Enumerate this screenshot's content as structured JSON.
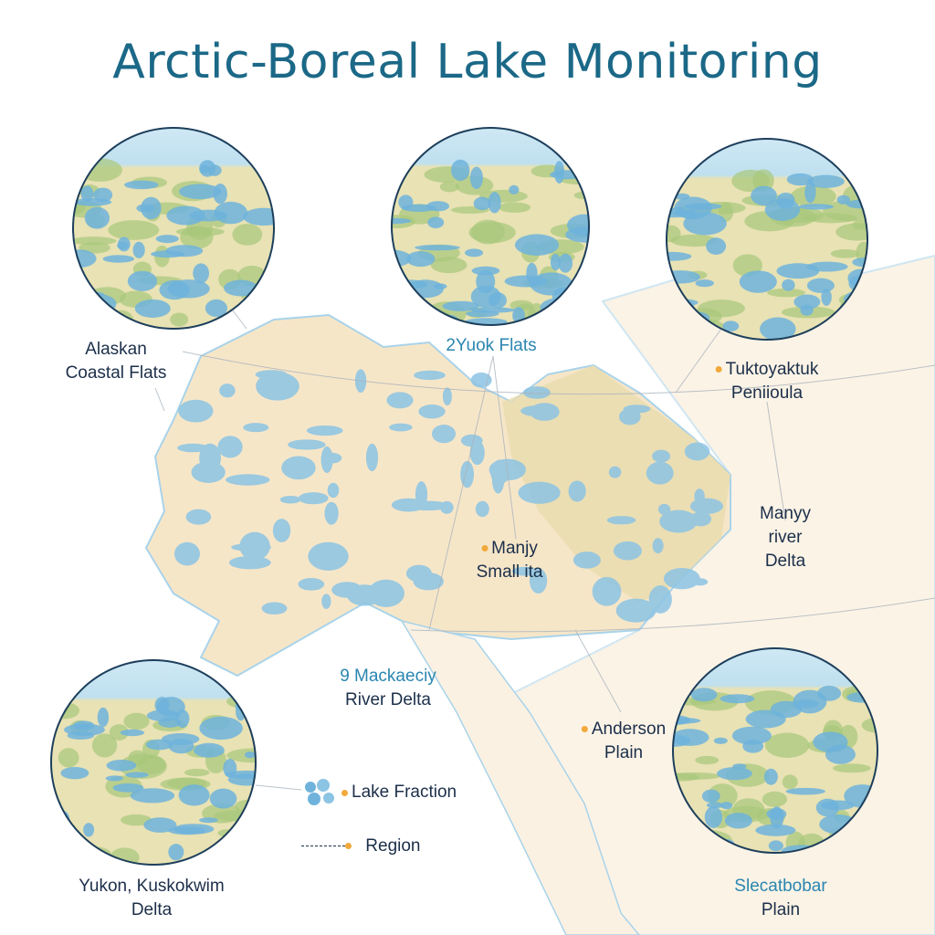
{
  "title": "Arctic-Boreal Lake Monitoring",
  "colors": {
    "title": "#1b6887",
    "land": "#f6e6c8",
    "lake": "#7fbde0",
    "marker": "#f2a93b",
    "circle_border": "#1d3f5c"
  },
  "regions": [
    {
      "line1": "Alaskan",
      "line2": "Coastal Flats",
      "marker": false
    },
    {
      "line1": "2Yuok Flats",
      "line2": "",
      "marker": false
    },
    {
      "line1": "Tuktoyaktuk",
      "line2": "Peniioula",
      "marker": true
    },
    {
      "line1": "Manyy",
      "line2": "river",
      "line3": "Delta",
      "marker": false
    },
    {
      "line1": "Manjy",
      "line2": "Small ita",
      "marker": true
    },
    {
      "line1": "9 Mackaeciy",
      "line2": "River Delta",
      "marker": false
    },
    {
      "line1": "Anderson",
      "line2": "Plain",
      "marker": true
    },
    {
      "line1": "Slecatbobar",
      "line2": "Plain",
      "marker": false
    },
    {
      "line1": "Yukon, Kuskokwim",
      "line2": "Delta",
      "marker": false
    }
  ],
  "legend": {
    "lake_fraction": "Lake Fraction",
    "region": "Region"
  }
}
